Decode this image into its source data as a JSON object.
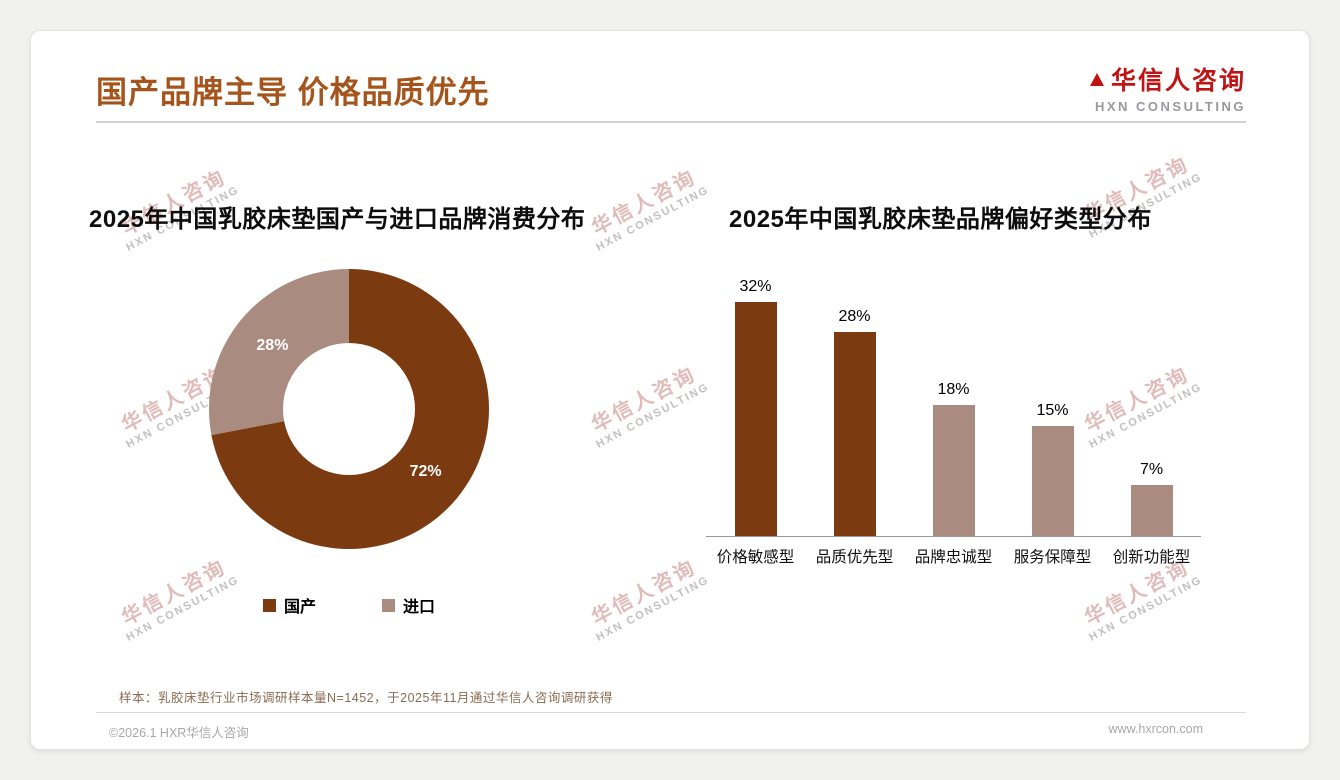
{
  "theme": {
    "title_color": "#a5551b",
    "logo_red": "#c01414",
    "brand_dark_brown": "#7b3a0f",
    "brand_light_mauve": "#a98b80"
  },
  "header": {
    "title": "国产品牌主导 价格品质优先",
    "logo": {
      "cn": "华信人咨询",
      "en": "HXN CONSULTING"
    }
  },
  "watermark": {
    "line1": "华信人咨询",
    "line2": "HXN CONSULTING"
  },
  "chart_data": [
    {
      "type": "pie",
      "donut": true,
      "title": "2025年中国乳胶床垫国产与进口品牌消费分布",
      "labels": [
        "国产",
        "进口"
      ],
      "values": [
        72,
        28
      ],
      "data_labels": [
        "72%",
        "28%"
      ],
      "colors": [
        "#7b3a0f",
        "#a98b80"
      ],
      "legend_position": "bottom"
    },
    {
      "type": "bar",
      "title": "2025年中国乳胶床垫品牌偏好类型分布",
      "categories": [
        "价格敏感型",
        "品质优先型",
        "品牌忠诚型",
        "服务保障型",
        "创新功能型"
      ],
      "values": [
        32,
        28,
        18,
        15,
        7
      ],
      "data_labels": [
        "32%",
        "28%",
        "18%",
        "15%",
        "7%"
      ],
      "colors": [
        "#7b3a0f",
        "#7b3a0f",
        "#a98b80",
        "#a98b80",
        "#a98b80"
      ],
      "ylim": [
        0,
        35
      ],
      "grid": false
    }
  ],
  "footnote": "样本：乳胶床垫行业市场调研样本量N=1452，于2025年11月通过华信人咨询调研获得",
  "footer": {
    "copyright": "©2026.1 HXR华信人咨询",
    "website": "www.hxrcon.com"
  }
}
